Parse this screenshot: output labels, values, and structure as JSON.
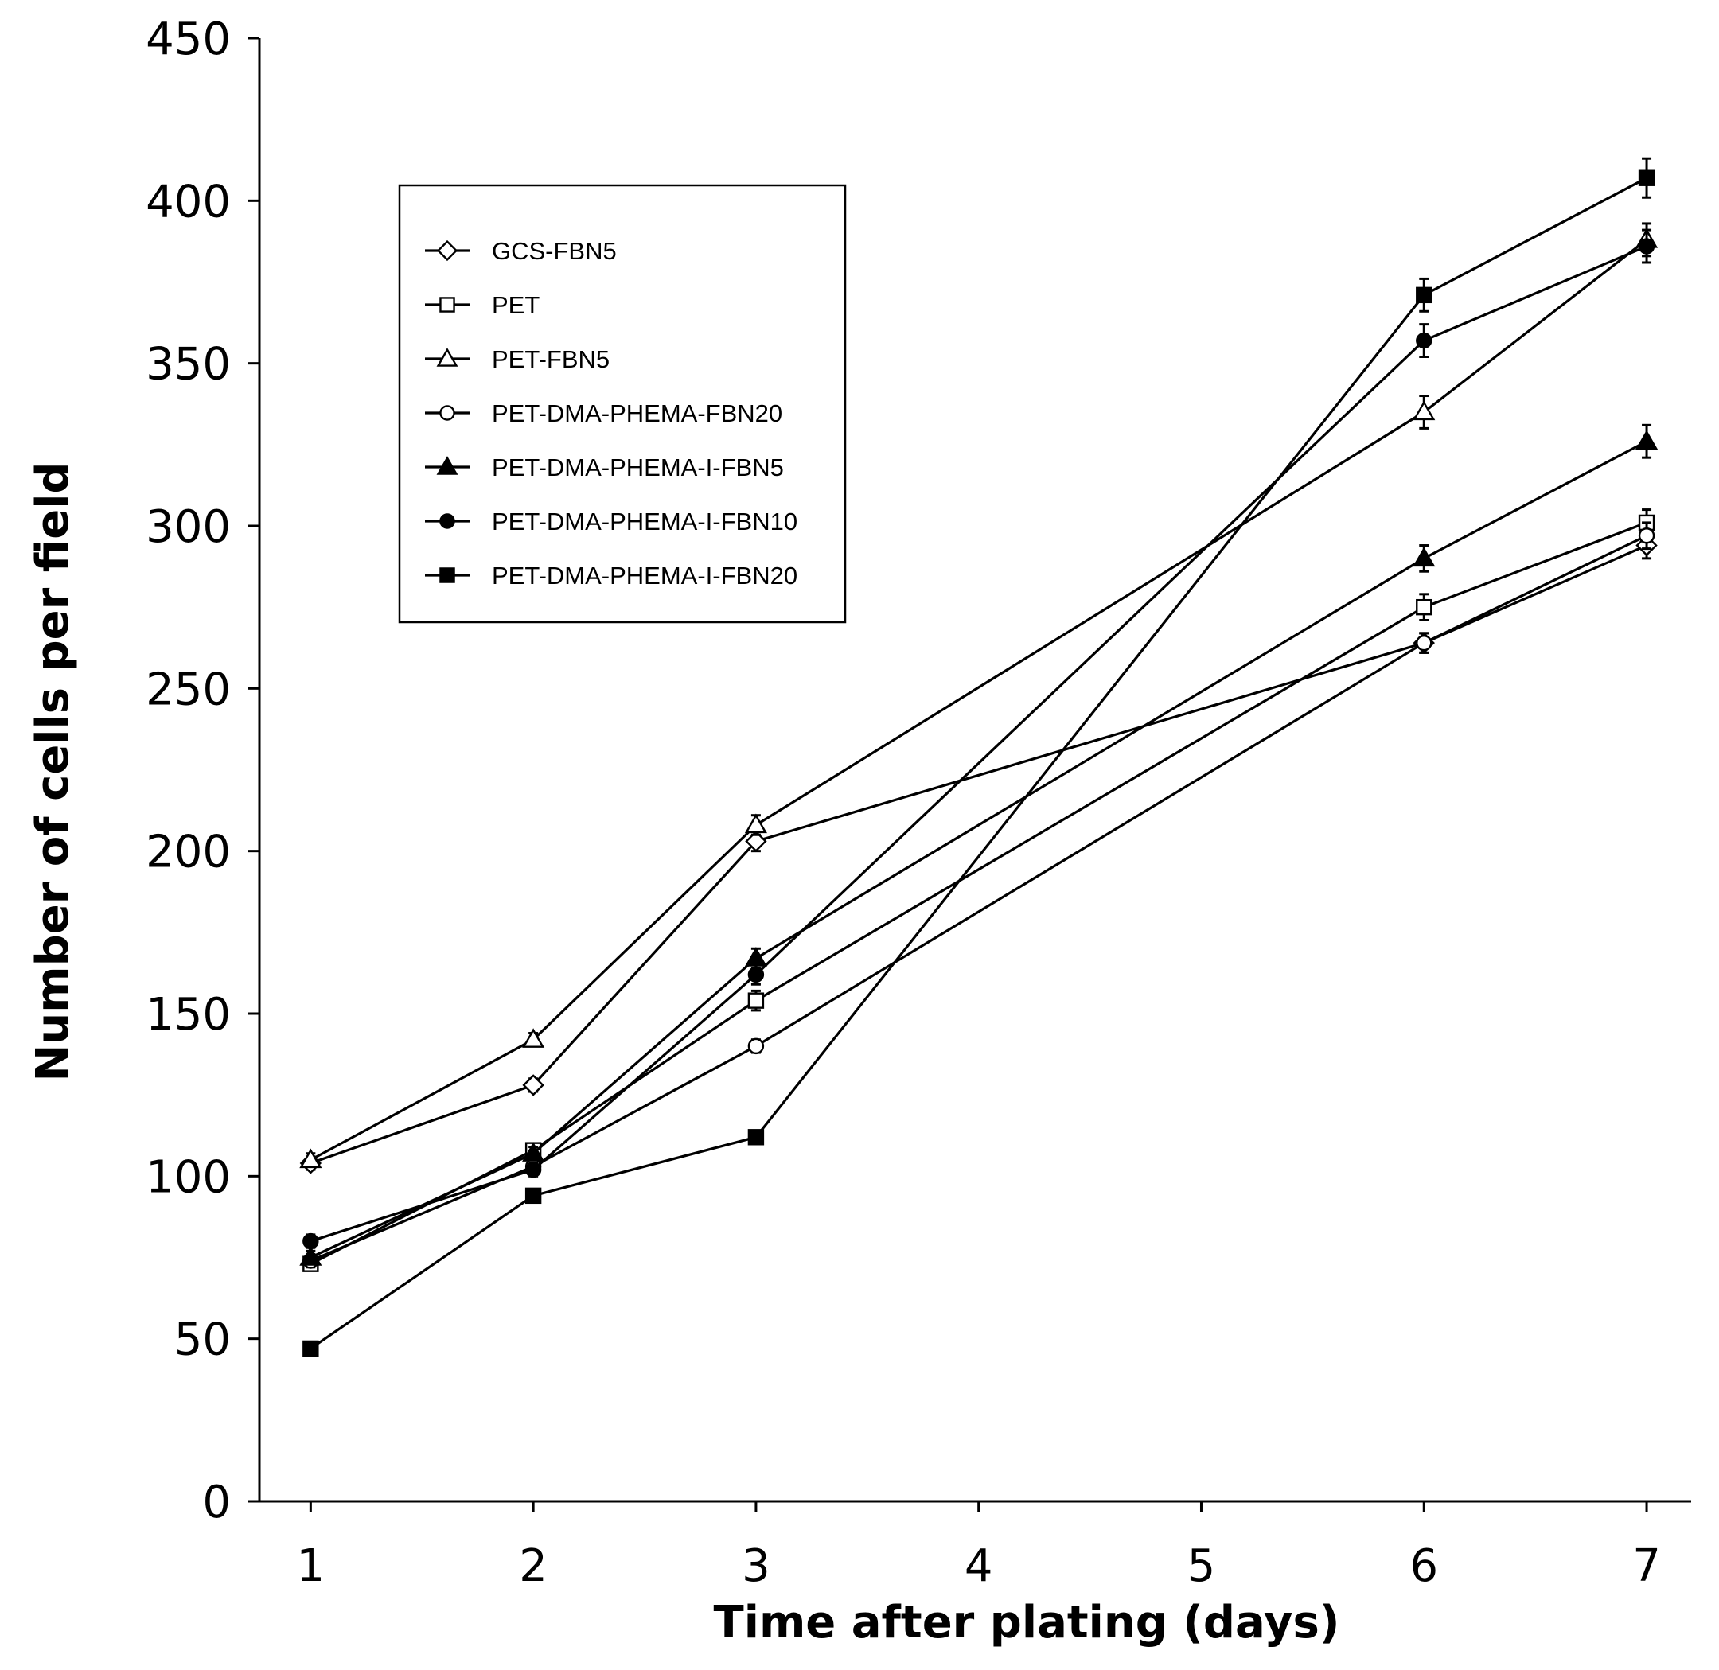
{
  "chart_data": {
    "type": "line",
    "title": "",
    "xlabel": "Time after plating (days)",
    "ylabel": "Number of cells per field",
    "x": [
      1,
      2,
      3,
      6,
      7
    ],
    "xticks": [
      1,
      2,
      3,
      4,
      5,
      6,
      7
    ],
    "xlim": [
      0.77,
      7.2
    ],
    "yticks": [
      0,
      50,
      100,
      150,
      200,
      250,
      300,
      350,
      400,
      450
    ],
    "ylim": [
      0,
      450
    ],
    "legend_position": "top-left",
    "series": [
      {
        "name": "GCS-FBN5",
        "marker": "diamond-open",
        "values": [
          104,
          128,
          203,
          264,
          294
        ],
        "errors": [
          2,
          2,
          3,
          3,
          4
        ]
      },
      {
        "name": "PET",
        "marker": "square-open",
        "values": [
          73,
          108,
          154,
          275,
          301
        ],
        "errors": [
          2,
          2,
          3,
          4,
          4
        ]
      },
      {
        "name": "PET-FBN5",
        "marker": "triangle-open",
        "values": [
          105,
          142,
          208,
          335,
          388
        ],
        "errors": [
          2,
          2,
          3,
          5,
          5
        ]
      },
      {
        "name": "PET-DMA-PHEMA-FBN20",
        "marker": "circle-open",
        "values": [
          74,
          103,
          140,
          264,
          297
        ],
        "errors": [
          2,
          2,
          2,
          3,
          4
        ]
      },
      {
        "name": "PET-DMA-PHEMA-I-FBN5",
        "marker": "triangle-filled",
        "values": [
          75,
          107,
          167,
          290,
          326
        ],
        "errors": [
          2,
          2,
          3,
          4,
          5
        ]
      },
      {
        "name": "PET-DMA-PHEMA-I-FBN10",
        "marker": "circle-filled",
        "values": [
          80,
          102,
          162,
          357,
          386
        ],
        "errors": [
          2,
          2,
          3,
          5,
          5
        ]
      },
      {
        "name": "PET-DMA-PHEMA-I-FBN20",
        "marker": "square-filled",
        "values": [
          47,
          94,
          112,
          371,
          407
        ],
        "errors": [
          2,
          2,
          2,
          5,
          6
        ]
      }
    ]
  }
}
